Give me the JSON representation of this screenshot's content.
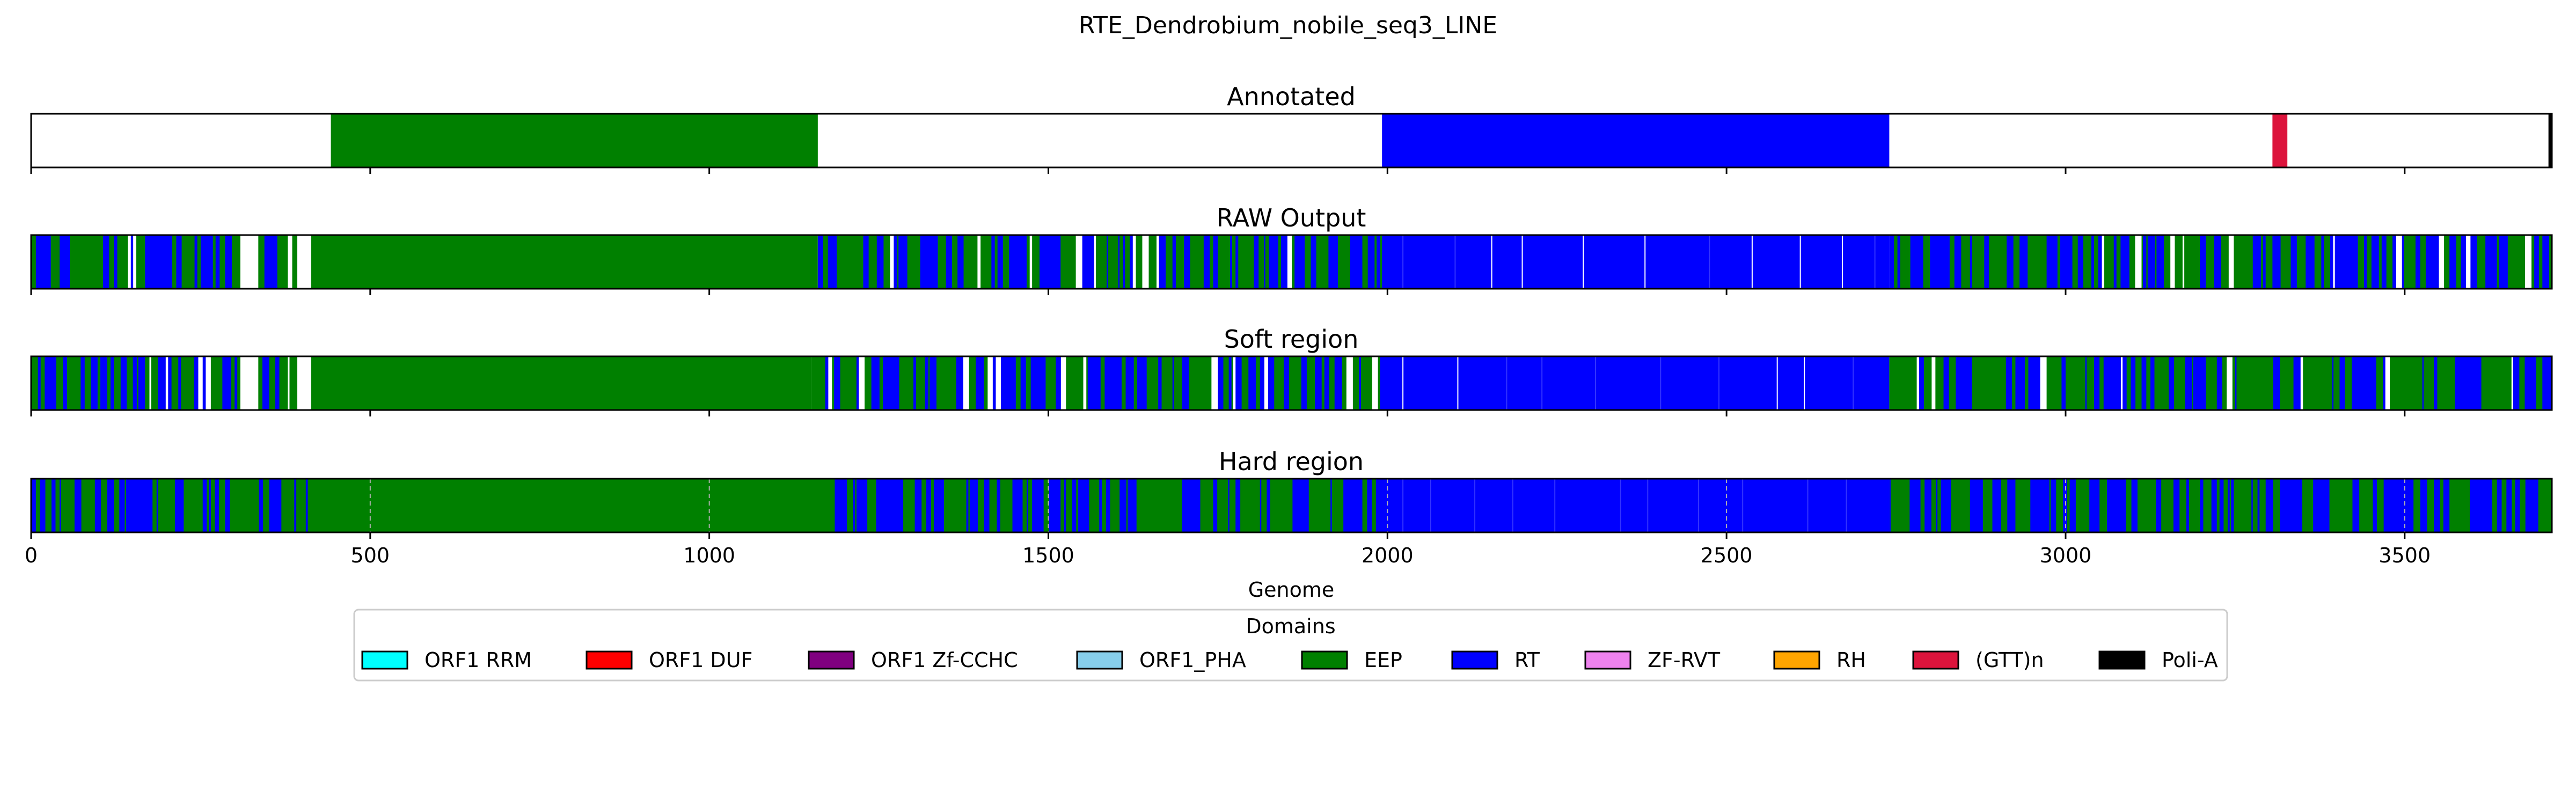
{
  "chart_data": {
    "type": "heatmap",
    "title": "RTE_Dendrobium_nobile_seq3_LINE",
    "xlabel": "Genome",
    "xlim": [
      0,
      3717
    ],
    "xticks": [
      0,
      500,
      1000,
      1500,
      2000,
      2500,
      3000,
      3500
    ],
    "tick_labels": [
      "0",
      "500",
      "1000",
      "1500",
      "2000",
      "2500",
      "3000",
      "3500"
    ],
    "legend": {
      "title": "Domains",
      "placement": "bottom-center",
      "entries": [
        {
          "name": "ORF1 RRM",
          "color": "#00FFFF"
        },
        {
          "name": "ORF1 DUF",
          "color": "#FF0000"
        },
        {
          "name": "ORF1 Zf-CCHC",
          "color": "#800080"
        },
        {
          "name": "ORF1_PHA",
          "color": "#87CEEB"
        },
        {
          "name": "EEP",
          "color": "#008000"
        },
        {
          "name": "RT",
          "color": "#0000FF"
        },
        {
          "name": "ZF-RVT",
          "color": "#EE82EE"
        },
        {
          "name": "RH",
          "color": "#FFA500"
        },
        {
          "name": "(GTT)n",
          "color": "#DC143C"
        },
        {
          "name": "Poli-A",
          "color": "#000000"
        }
      ]
    },
    "tracks": [
      {
        "title": "Annotated",
        "grid": false,
        "background": "#FFFFFF",
        "segments": [
          {
            "start": 442,
            "end": 1160,
            "domain": "EEP",
            "color": "#008000"
          },
          {
            "start": 1992,
            "end": 2740,
            "domain": "RT",
            "color": "#0000FF"
          },
          {
            "start": 3305,
            "end": 3327,
            "domain": "(GTT)n",
            "color": "#DC143C"
          },
          {
            "start": 3712,
            "end": 3717,
            "domain": "Poli-A",
            "color": "#000000"
          }
        ]
      },
      {
        "title": "RAW Output",
        "grid": false,
        "background": "#FFFFFF",
        "segments": [
          {
            "start": 0,
            "end": 308,
            "domain": "mixed",
            "color": "mixed"
          },
          {
            "start": 335,
            "end": 392,
            "domain": "mixed",
            "color": "mixed"
          },
          {
            "start": 413,
            "end": 1160,
            "domain": "EEP",
            "color": "#008000"
          },
          {
            "start": 1160,
            "end": 1992,
            "domain": "mixed",
            "color": "mixed"
          },
          {
            "start": 1992,
            "end": 2740,
            "domain": "RT",
            "color": "#0000FF"
          },
          {
            "start": 2740,
            "end": 3717,
            "domain": "mixed",
            "color": "mixed"
          }
        ]
      },
      {
        "title": "Soft region",
        "grid": false,
        "background": "#FFFFFF",
        "segments": [
          {
            "start": 0,
            "end": 308,
            "domain": "mixed",
            "color": "mixed"
          },
          {
            "start": 335,
            "end": 392,
            "domain": "mixed",
            "color": "mixed"
          },
          {
            "start": 413,
            "end": 1150,
            "domain": "EEP",
            "color": "#008000"
          },
          {
            "start": 1150,
            "end": 1992,
            "domain": "mixed",
            "color": "mixed"
          },
          {
            "start": 1992,
            "end": 2740,
            "domain": "RT",
            "color": "#0000FF"
          },
          {
            "start": 2740,
            "end": 3717,
            "domain": "mixed",
            "color": "mixed"
          }
        ]
      },
      {
        "title": "Hard region",
        "grid": true,
        "background": "#008000",
        "segments": [
          {
            "start": 0,
            "end": 408,
            "domain": "mixed",
            "color": "mixed"
          },
          {
            "start": 408,
            "end": 1150,
            "domain": "EEP",
            "color": "#008000"
          },
          {
            "start": 1150,
            "end": 1992,
            "domain": "mixed",
            "color": "mixed"
          },
          {
            "start": 1992,
            "end": 2740,
            "domain": "RT",
            "color": "#0000FF"
          },
          {
            "start": 2740,
            "end": 3717,
            "domain": "mixed",
            "color": "mixed"
          }
        ]
      }
    ]
  }
}
